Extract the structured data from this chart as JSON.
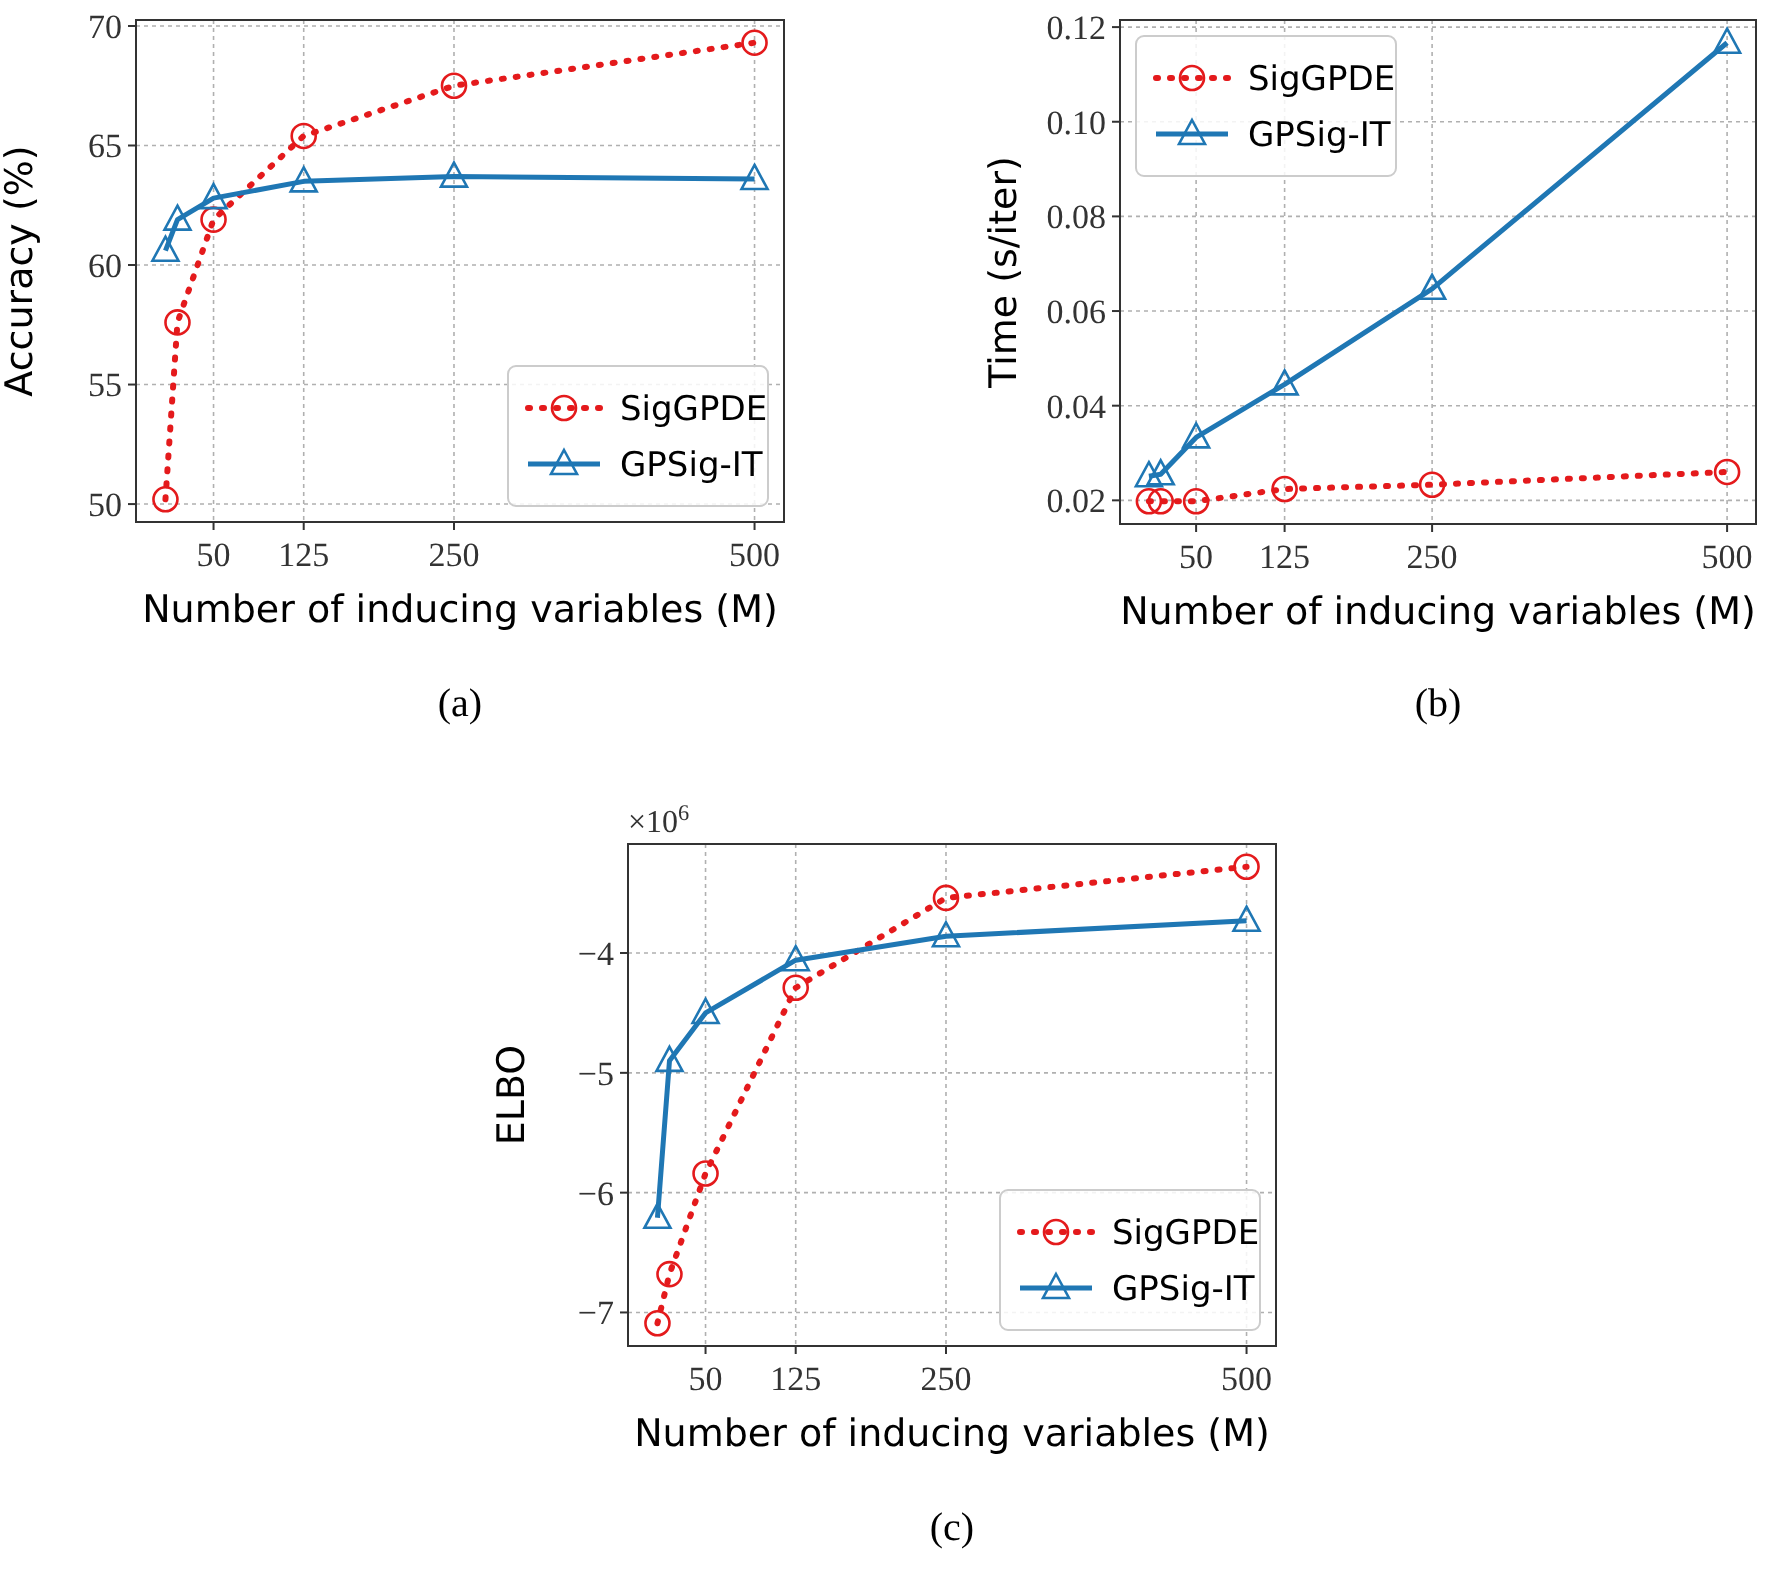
{
  "chart_data": [
    {
      "type": "line",
      "xlabel": "Number of inducing variables (M)",
      "ylabel": "Accuracy (%)",
      "annotations": [
        "(a)"
      ],
      "x": [
        10,
        20,
        50,
        125,
        250,
        500
      ],
      "xlim": [
        -14.5,
        524.5
      ],
      "xticks": [
        50,
        125,
        250,
        500
      ],
      "ylim": [
        49.25,
        70.25
      ],
      "yticks": [
        50,
        55,
        60,
        65,
        70
      ],
      "grid": true,
      "legend": "bottom right",
      "series": [
        {
          "name": "SigGPDE",
          "color": "#e41a1c",
          "marker": "circle",
          "line_style": "dotted",
          "values": [
            50.2,
            57.6,
            61.9,
            65.4,
            67.5,
            69.3
          ]
        },
        {
          "name": "GPSig-IT",
          "color": "#1f77b4",
          "marker": "triangle",
          "line_style": "solid",
          "values": [
            60.6,
            61.9,
            62.8,
            63.5,
            63.7,
            63.6
          ]
        }
      ]
    },
    {
      "type": "line",
      "xlabel": "Number of inducing variables (M)",
      "ylabel": "Time (s/iter)",
      "annotations": [
        "(b)"
      ],
      "x": [
        10,
        20,
        50,
        125,
        250,
        500
      ],
      "xlim": [
        -14.5,
        524.5
      ],
      "xticks": [
        50,
        125,
        250,
        500
      ],
      "ylim": [
        0.015,
        0.1215
      ],
      "yticks": [
        0.02,
        0.04,
        0.06,
        0.08,
        {
          "value": 0.1,
          "label": "0.10"
        },
        0.12
      ],
      "grid": true,
      "legend": "top left",
      "series": [
        {
          "name": "SigGPDE",
          "color": "#e41a1c",
          "marker": "circle",
          "line_style": "dotted",
          "values": [
            0.0198,
            0.0198,
            0.0198,
            0.0224,
            0.0233,
            0.026
          ]
        },
        {
          "name": "GPSig-IT",
          "color": "#1f77b4",
          "marker": "triangle",
          "line_style": "solid",
          "values": [
            0.0251,
            0.0255,
            0.0333,
            0.0445,
            0.0647,
            0.1167
          ]
        }
      ]
    },
    {
      "type": "line",
      "xlabel": "Number of inducing variables (M)",
      "ylabel": "ELBO",
      "annotations": [
        "×10$^{6}$",
        "(c)"
      ],
      "x": [
        10,
        20,
        50,
        125,
        250,
        500
      ],
      "xlim": [
        -14.5,
        524.5
      ],
      "xticks": [
        50,
        125,
        250,
        500
      ],
      "ylim": [
        -7.28,
        -3.09
      ],
      "yticks": [
        {
          "value": -7,
          "label": "−7"
        },
        {
          "value": -6,
          "label": "−6"
        },
        {
          "value": -5,
          "label": "−5"
        },
        {
          "value": -4,
          "label": "−4"
        }
      ],
      "grid": true,
      "legend": "bottom right",
      "series": [
        {
          "name": "SigGPDE",
          "color": "#e41a1c",
          "marker": "circle",
          "line_style": "dotted",
          "values": [
            -7.09,
            -6.68,
            -5.84,
            -4.29,
            -3.54,
            -3.28
          ]
        },
        {
          "name": "GPSig-IT",
          "color": "#1f77b4",
          "marker": "triangle",
          "line_style": "solid",
          "values": [
            -6.21,
            -4.9,
            -4.5,
            -4.06,
            -3.86,
            -3.73
          ]
        }
      ]
    }
  ]
}
